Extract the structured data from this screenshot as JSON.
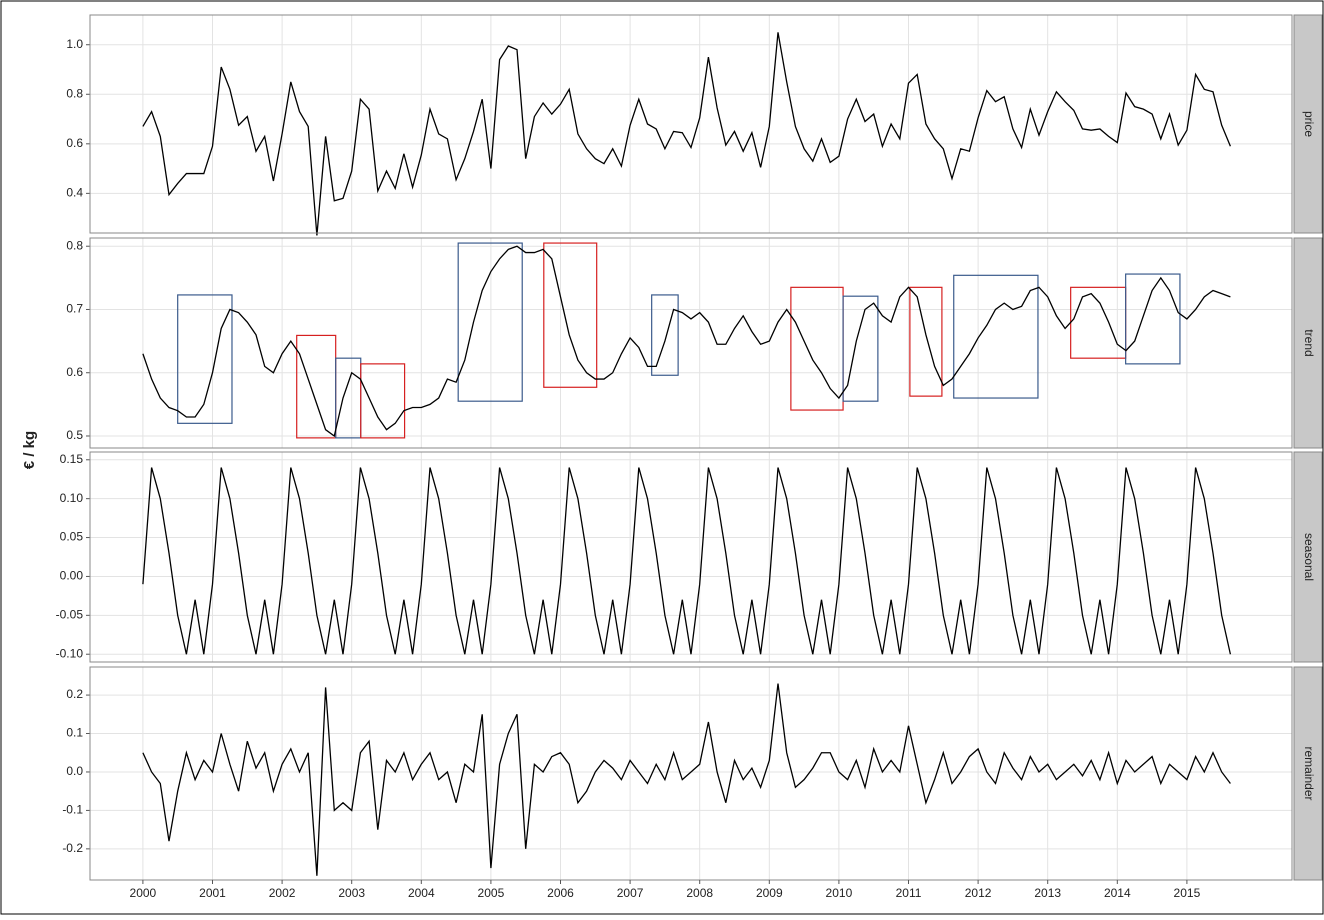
{
  "chart_data": {
    "type": "line",
    "y_label": "€ / kg",
    "grid": true,
    "line_color": "#000000",
    "xlim": [
      1999.24,
      2016.51
    ],
    "xticks": [
      2000,
      2001,
      2002,
      2003,
      2004,
      2005,
      2006,
      2007,
      2008,
      2009,
      2010,
      2011,
      2012,
      2013,
      2014,
      2015
    ],
    "x": [
      2000,
      2000.125,
      2000.25,
      2000.375,
      2000.5,
      2000.625,
      2000.75,
      2000.875,
      2001,
      2001.125,
      2001.25,
      2001.375,
      2001.5,
      2001.625,
      2001.75,
      2001.875,
      2002,
      2002.125,
      2002.25,
      2002.375,
      2002.5,
      2002.625,
      2002.75,
      2002.875,
      2003,
      2003.125,
      2003.25,
      2003.375,
      2003.5,
      2003.625,
      2003.75,
      2003.875,
      2004,
      2004.125,
      2004.25,
      2004.375,
      2004.5,
      2004.625,
      2004.75,
      2004.875,
      2005,
      2005.125,
      2005.25,
      2005.375,
      2005.5,
      2005.625,
      2005.75,
      2005.875,
      2006,
      2006.125,
      2006.25,
      2006.375,
      2006.5,
      2006.625,
      2006.75,
      2006.875,
      2007,
      2007.125,
      2007.25,
      2007.375,
      2007.5,
      2007.625,
      2007.75,
      2007.875,
      2008,
      2008.125,
      2008.25,
      2008.375,
      2008.5,
      2008.625,
      2008.75,
      2008.875,
      2009,
      2009.125,
      2009.25,
      2009.375,
      2009.5,
      2009.625,
      2009.75,
      2009.875,
      2010,
      2010.125,
      2010.25,
      2010.375,
      2010.5,
      2010.625,
      2010.75,
      2010.875,
      2011,
      2011.125,
      2011.25,
      2011.375,
      2011.5,
      2011.625,
      2011.75,
      2011.875,
      2012,
      2012.125,
      2012.25,
      2012.375,
      2012.5,
      2012.625,
      2012.75,
      2012.875,
      2013,
      2013.125,
      2013.25,
      2013.375,
      2013.5,
      2013.625,
      2013.75,
      2013.875,
      2014,
      2014.125,
      2014.25,
      2014.375,
      2014.5,
      2014.625,
      2014.75,
      2014.875,
      2015,
      2015.125,
      2015.25,
      2015.375,
      2015.5,
      2015.625
    ],
    "panels": [
      {
        "name": "price",
        "ylim": [
          0.24,
          1.12
        ],
        "yticks": [
          0.4,
          0.6,
          0.8,
          {
            "value": 1.0,
            "label": "1.0"
          }
        ],
        "values": [
          0.67,
          0.73,
          0.63,
          0.395,
          0.44,
          0.48,
          0.48,
          0.48,
          0.59,
          0.91,
          0.82,
          0.675,
          0.71,
          0.57,
          0.63,
          0.45,
          0.64,
          0.85,
          0.73,
          0.67,
          0.23,
          0.63,
          0.37,
          0.38,
          0.49,
          0.78,
          0.74,
          0.41,
          0.49,
          0.42,
          0.56,
          0.425,
          0.555,
          0.74,
          0.64,
          0.62,
          0.455,
          0.54,
          0.65,
          0.78,
          0.5,
          0.94,
          0.995,
          0.98,
          0.54,
          0.71,
          0.765,
          0.72,
          0.76,
          0.82,
          0.64,
          0.58,
          0.54,
          0.52,
          0.58,
          0.51,
          0.675,
          0.78,
          0.68,
          0.66,
          0.58,
          0.65,
          0.645,
          0.585,
          0.705,
          0.95,
          0.745,
          0.595,
          0.65,
          0.57,
          0.645,
          0.505,
          0.67,
          1.05,
          0.85,
          0.67,
          0.58,
          0.53,
          0.62,
          0.525,
          0.55,
          0.7,
          0.78,
          0.69,
          0.72,
          0.59,
          0.68,
          0.62,
          0.845,
          0.88,
          0.68,
          0.62,
          0.58,
          0.46,
          0.58,
          0.57,
          0.705,
          0.815,
          0.77,
          0.79,
          0.66,
          0.585,
          0.74,
          0.635,
          0.73,
          0.81,
          0.77,
          0.735,
          0.66,
          0.655,
          0.66,
          0.63,
          0.605,
          0.805,
          0.75,
          0.74,
          0.72,
          0.62,
          0.72,
          0.595,
          0.655,
          0.88,
          0.82,
          0.81,
          0.675,
          0.59
        ]
      },
      {
        "name": "trend",
        "ylim": [
          0.481,
          0.813
        ],
        "yticks": [
          0.5,
          0.6,
          0.7,
          0.8
        ],
        "values": [
          0.63,
          0.59,
          0.56,
          0.545,
          0.54,
          0.53,
          0.53,
          0.55,
          0.6,
          0.67,
          0.7,
          0.695,
          0.68,
          0.66,
          0.61,
          0.6,
          0.63,
          0.65,
          0.63,
          0.59,
          0.55,
          0.51,
          0.5,
          0.56,
          0.6,
          0.59,
          0.56,
          0.53,
          0.51,
          0.52,
          0.54,
          0.545,
          0.545,
          0.55,
          0.56,
          0.59,
          0.585,
          0.62,
          0.68,
          0.73,
          0.76,
          0.78,
          0.795,
          0.8,
          0.79,
          0.79,
          0.795,
          0.78,
          0.72,
          0.66,
          0.62,
          0.6,
          0.59,
          0.59,
          0.6,
          0.63,
          0.655,
          0.64,
          0.61,
          0.61,
          0.65,
          0.7,
          0.695,
          0.685,
          0.695,
          0.68,
          0.645,
          0.645,
          0.67,
          0.69,
          0.665,
          0.645,
          0.65,
          0.68,
          0.7,
          0.68,
          0.65,
          0.62,
          0.6,
          0.575,
          0.56,
          0.58,
          0.65,
          0.7,
          0.71,
          0.69,
          0.68,
          0.72,
          0.735,
          0.72,
          0.66,
          0.61,
          0.58,
          0.59,
          0.61,
          0.63,
          0.655,
          0.675,
          0.7,
          0.71,
          0.7,
          0.705,
          0.73,
          0.735,
          0.72,
          0.69,
          0.67,
          0.685,
          0.72,
          0.725,
          0.71,
          0.68,
          0.645,
          0.635,
          0.65,
          0.69,
          0.73,
          0.75,
          0.73,
          0.695,
          0.685,
          0.7,
          0.72,
          0.73,
          0.725,
          0.72
        ],
        "boxes": [
          {
            "x0": 2000.5,
            "x1": 2001.28,
            "y0": 0.52,
            "y1": 0.723,
            "color": "#3b5b8c"
          },
          {
            "x0": 2002.21,
            "x1": 2002.77,
            "y0": 0.497,
            "y1": 0.659,
            "color": "#d62020"
          },
          {
            "x0": 2002.77,
            "x1": 2003.13,
            "y0": 0.497,
            "y1": 0.623,
            "color": "#3b5b8c"
          },
          {
            "x0": 2003.13,
            "x1": 2003.76,
            "y0": 0.497,
            "y1": 0.614,
            "color": "#d62020"
          },
          {
            "x0": 2004.53,
            "x1": 2005.45,
            "y0": 0.555,
            "y1": 0.805,
            "color": "#3b5b8c"
          },
          {
            "x0": 2005.76,
            "x1": 2006.52,
            "y0": 0.577,
            "y1": 0.805,
            "color": "#d62020"
          },
          {
            "x0": 2007.31,
            "x1": 2007.69,
            "y0": 0.596,
            "y1": 0.723,
            "color": "#3b5b8c"
          },
          {
            "x0": 2009.31,
            "x1": 2010.06,
            "y0": 0.541,
            "y1": 0.735,
            "color": "#d62020"
          },
          {
            "x0": 2010.06,
            "x1": 2010.56,
            "y0": 0.555,
            "y1": 0.721,
            "color": "#3b5b8c"
          },
          {
            "x0": 2011.02,
            "x1": 2011.48,
            "y0": 0.563,
            "y1": 0.735,
            "color": "#d62020"
          },
          {
            "x0": 2011.65,
            "x1": 2012.86,
            "y0": 0.56,
            "y1": 0.754,
            "color": "#3b5b8c"
          },
          {
            "x0": 2013.33,
            "x1": 2014.12,
            "y0": 0.623,
            "y1": 0.735,
            "color": "#d62020"
          },
          {
            "x0": 2014.12,
            "x1": 2014.9,
            "y0": 0.614,
            "y1": 0.756,
            "color": "#3b5b8c"
          }
        ]
      },
      {
        "name": "seasonal",
        "ylim": [
          -0.11,
          0.16
        ],
        "yticks": [
          0.15,
          {
            "value": 0.1,
            "label": "0.10"
          },
          0.05,
          {
            "value": 0,
            "label": "0.00"
          },
          -0.05,
          {
            "value": -0.1,
            "label": "-0.10"
          }
        ],
        "values": [
          -0.01,
          0.14,
          0.1,
          0.03,
          -0.05,
          -0.1,
          -0.03,
          -0.1,
          -0.01,
          0.14,
          0.1,
          0.03,
          -0.05,
          -0.1,
          -0.03,
          -0.1,
          -0.01,
          0.14,
          0.1,
          0.03,
          -0.05,
          -0.1,
          -0.03,
          -0.1,
          -0.01,
          0.14,
          0.1,
          0.03,
          -0.05,
          -0.1,
          -0.03,
          -0.1,
          -0.01,
          0.14,
          0.1,
          0.03,
          -0.05,
          -0.1,
          -0.03,
          -0.1,
          -0.01,
          0.14,
          0.1,
          0.03,
          -0.05,
          -0.1,
          -0.03,
          -0.1,
          -0.01,
          0.14,
          0.1,
          0.03,
          -0.05,
          -0.1,
          -0.03,
          -0.1,
          -0.01,
          0.14,
          0.1,
          0.03,
          -0.05,
          -0.1,
          -0.03,
          -0.1,
          -0.01,
          0.14,
          0.1,
          0.03,
          -0.05,
          -0.1,
          -0.03,
          -0.1,
          -0.01,
          0.14,
          0.1,
          0.03,
          -0.05,
          -0.1,
          -0.03,
          -0.1,
          -0.01,
          0.14,
          0.1,
          0.03,
          -0.05,
          -0.1,
          -0.03,
          -0.1,
          -0.01,
          0.14,
          0.1,
          0.03,
          -0.05,
          -0.1,
          -0.03,
          -0.1,
          -0.01,
          0.14,
          0.1,
          0.03,
          -0.05,
          -0.1,
          -0.03,
          -0.1,
          -0.01,
          0.14,
          0.1,
          0.03,
          -0.05,
          -0.1,
          -0.03,
          -0.1,
          -0.01,
          0.14,
          0.1,
          0.03,
          -0.05,
          -0.1,
          -0.03,
          -0.1,
          -0.01,
          0.14,
          0.1,
          0.03,
          -0.05,
          -0.1
        ]
      },
      {
        "name": "remainder",
        "ylim": [
          -0.281,
          0.273
        ],
        "yticks": [
          0.2,
          0.1,
          {
            "value": 0,
            "label": "0.0"
          },
          -0.1,
          -0.2
        ],
        "values": [
          0.05,
          0,
          -0.03,
          -0.18,
          -0.05,
          0.05,
          -0.02,
          0.03,
          0,
          0.1,
          0.02,
          -0.05,
          0.08,
          0.01,
          0.05,
          -0.05,
          0.02,
          0.06,
          0,
          0.05,
          -0.27,
          0.22,
          -0.1,
          -0.08,
          -0.1,
          0.05,
          0.08,
          -0.15,
          0.03,
          0,
          0.05,
          -0.02,
          0.02,
          0.05,
          -0.02,
          0,
          -0.08,
          0.02,
          0,
          0.15,
          -0.25,
          0.02,
          0.1,
          0.15,
          -0.2,
          0.02,
          0,
          0.04,
          0.05,
          0.02,
          -0.08,
          -0.05,
          0,
          0.03,
          0.01,
          -0.02,
          0.03,
          0,
          -0.03,
          0.02,
          -0.02,
          0.05,
          -0.02,
          0,
          0.02,
          0.13,
          0,
          -0.08,
          0.03,
          -0.02,
          0.01,
          -0.04,
          0.03,
          0.23,
          0.05,
          -0.04,
          -0.02,
          0.01,
          0.05,
          0.05,
          0,
          -0.02,
          0.03,
          -0.04,
          0.06,
          0,
          0.03,
          0,
          0.12,
          0.02,
          -0.08,
          -0.02,
          0.05,
          -0.03,
          0,
          0.04,
          0.06,
          0,
          -0.03,
          0.05,
          0.01,
          -0.02,
          0.04,
          0,
          0.02,
          -0.02,
          0,
          0.02,
          -0.01,
          0.03,
          -0.02,
          0.05,
          -0.03,
          0.03,
          0,
          0.02,
          0.04,
          -0.03,
          0.02,
          0,
          -0.02,
          0.04,
          0,
          0.05,
          0,
          -0.03
        ]
      }
    ]
  }
}
